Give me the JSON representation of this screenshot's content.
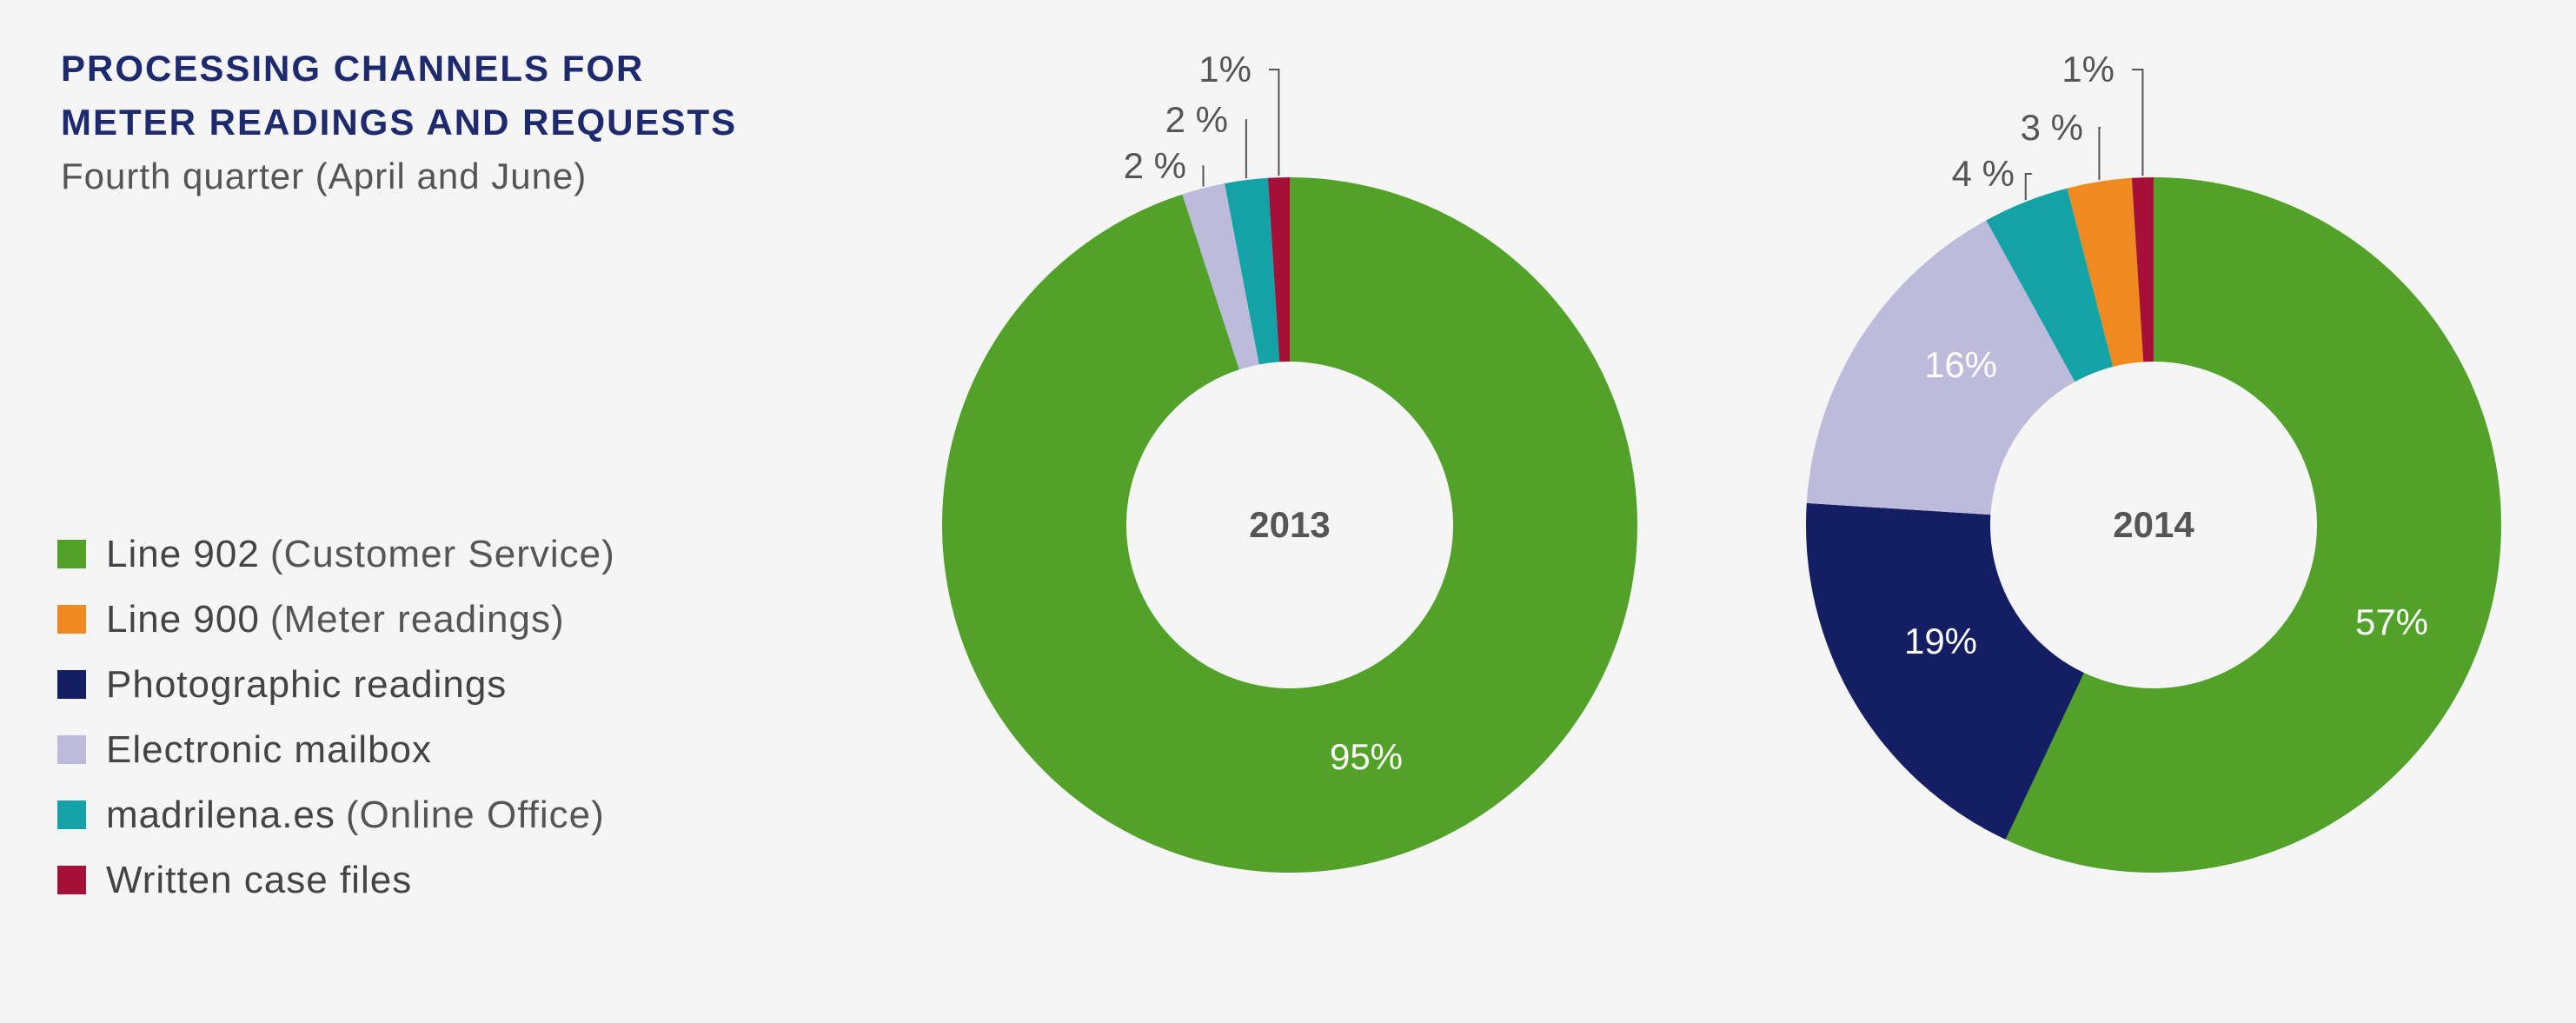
{
  "header": {
    "title_lines": [
      "PROCESSING CHANNELS FOR",
      "METER READINGS AND REQUESTS"
    ],
    "subtitle": "Fourth quarter (April and June)"
  },
  "legend": {
    "items": [
      {
        "label": "Line 902",
        "note": "(Customer Service)",
        "color": "#52a22a"
      },
      {
        "label": "Line 900",
        "note": "(Meter readings)",
        "color": "#f0891f"
      },
      {
        "label": "Photographic readings",
        "note": "",
        "color": "#131e63"
      },
      {
        "label": "Electronic mailbox",
        "note": "",
        "color": "#bdbadb"
      },
      {
        "label": "madrilena.es",
        "note": "(Online Office)",
        "color": "#13a3a6"
      },
      {
        "label": "Written case files",
        "note": "",
        "color": "#a51039"
      }
    ]
  },
  "chart_data": [
    {
      "type": "pie",
      "variant": "donut",
      "center_label": "2013",
      "slices": [
        {
          "name": "Line 902",
          "value": 95,
          "label": "95%",
          "label_placement": "inside"
        },
        {
          "name": "Line 900",
          "value": 0,
          "label": "",
          "label_placement": "none"
        },
        {
          "name": "Photographic readings",
          "value": 0,
          "label": "",
          "label_placement": "none"
        },
        {
          "name": "Electronic mailbox",
          "value": 2,
          "label": "2 %",
          "label_placement": "callout"
        },
        {
          "name": "madrilena.es",
          "value": 2,
          "label": "2 %",
          "label_placement": "callout"
        },
        {
          "name": "Written case files",
          "value": 1,
          "label": "1%",
          "label_placement": "callout"
        }
      ]
    },
    {
      "type": "pie",
      "variant": "donut",
      "center_label": "2014",
      "slices": [
        {
          "name": "Line 902",
          "value": 57,
          "label": "57%",
          "label_placement": "inside"
        },
        {
          "name": "Photographic readings",
          "value": 19,
          "label": "19%",
          "label_placement": "inside"
        },
        {
          "name": "Electronic mailbox",
          "value": 16,
          "label": "16%",
          "label_placement": "inside"
        },
        {
          "name": "madrilena.es",
          "value": 4,
          "label": "4 %",
          "label_placement": "callout"
        },
        {
          "name": "Line 900",
          "value": 3,
          "label": "3 %",
          "label_placement": "callout"
        },
        {
          "name": "Written case files",
          "value": 1,
          "label": "1%",
          "label_placement": "callout"
        }
      ]
    }
  ]
}
